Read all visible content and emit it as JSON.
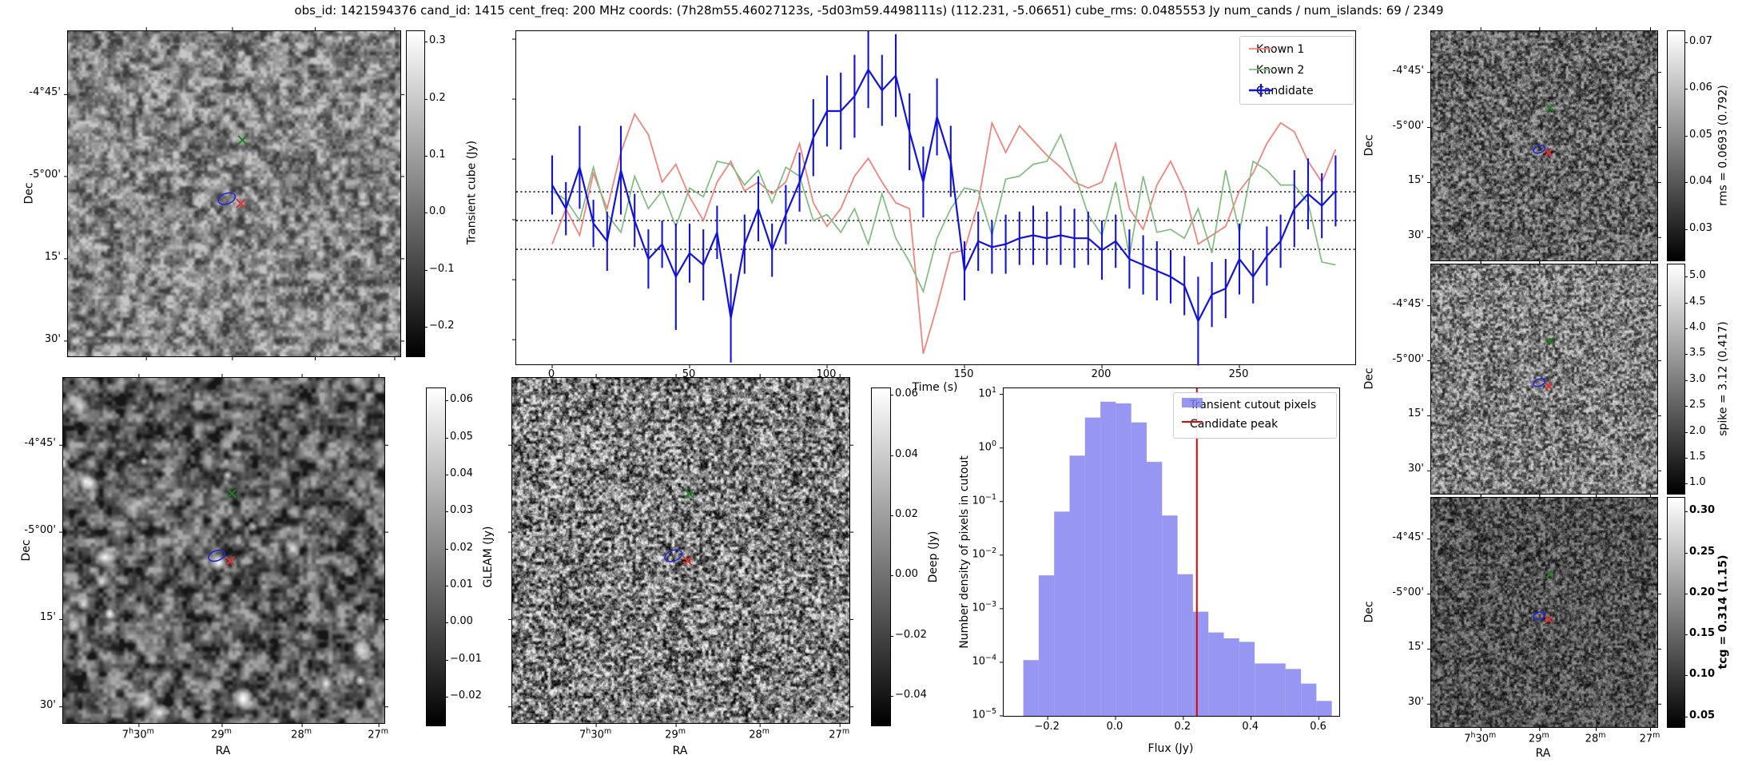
{
  "title": "obs_id: 1421594376 cand_id: 1415 cent_freq: 200 MHz coords: (7h28m55.46027123s, -5d03m59.4498111s) (112.231, -5.06651) cube_rms: 0.0485553 Jy num_cands / num_islands: 69 / 2349",
  "axis": {
    "dec_label": "Dec",
    "ra_label": "RA",
    "dec_ticks": [
      "-4°45'",
      "-5°00'",
      "15'",
      "30'"
    ],
    "ra_ticks": [
      "7h30m",
      "29m",
      "28m",
      "27m"
    ]
  },
  "colorbars": {
    "transient": {
      "label": "Transient cube (Jy)",
      "ticks": [
        "0.3",
        "0.2",
        "0.1",
        "0.0",
        "−0.1",
        "−0.2"
      ],
      "tick_values": [
        0.3,
        0.2,
        0.1,
        0.0,
        -0.1,
        -0.2
      ],
      "vmin": -0.25,
      "vmax": 0.32
    },
    "gleam": {
      "label": "GLEAM (Jy)",
      "ticks": [
        "0.06",
        "0.05",
        "0.04",
        "0.03",
        "0.02",
        "0.01",
        "0.00",
        "−0.01",
        "−0.02"
      ],
      "tick_values": [
        0.06,
        0.05,
        0.04,
        0.03,
        0.02,
        0.01,
        0.0,
        -0.01,
        -0.02
      ],
      "vmin": -0.0275,
      "vmax": 0.0635
    },
    "deep": {
      "label": "Deep (Jy)",
      "ticks": [
        "0.06",
        "0.04",
        "0.02",
        "0.00",
        "−0.02",
        "−0.04"
      ],
      "tick_values": [
        0.06,
        0.04,
        0.02,
        0.0,
        -0.02,
        -0.04
      ],
      "vmin": -0.0495,
      "vmax": 0.0625
    },
    "rms": {
      "label": "rms = 0.0693 (0.792)",
      "ticks": [
        "0.07",
        "0.06",
        "0.05",
        "0.04",
        "0.03"
      ],
      "tick_values": [
        0.07,
        0.06,
        0.05,
        0.04,
        0.03
      ],
      "vmin": 0.0235,
      "vmax": 0.0725
    },
    "spike": {
      "label": "spike = 3.12 (0.417)",
      "ticks": [
        "5.0",
        "4.5",
        "4.0",
        "3.5",
        "3.0",
        "2.5",
        "2.0",
        "1.5",
        "1.0"
      ],
      "tick_values": [
        5.0,
        4.5,
        4.0,
        3.5,
        3.0,
        2.5,
        2.0,
        1.5,
        1.0
      ],
      "vmin": 0.82,
      "vmax": 5.25
    },
    "tcg": {
      "label": "tcg = 0.314 (1.15)",
      "bold": true,
      "ticks": [
        "0.30",
        "0.25",
        "0.20",
        "0.15",
        "0.10",
        "0.05"
      ],
      "tick_values": [
        0.3,
        0.25,
        0.2,
        0.15,
        0.1,
        0.05
      ],
      "vmin": 0.038,
      "vmax": 0.318
    }
  },
  "cutouts": {
    "marker_legend": {
      "known_position_cross_color": "#237d23",
      "candidate_position_cross_color": "#e03131",
      "candidate_island_ellipse_color": "#2525d8"
    }
  },
  "chart_data": [
    {
      "type": "line",
      "title": "",
      "xlabel": "Time (s)",
      "ylabel": "",
      "x_start": 0,
      "x_step": 5,
      "xticks": [
        0,
        50,
        100,
        150,
        200,
        250
      ],
      "ylim": [
        -0.243,
        0.32
      ],
      "threshold_lines": [
        0.0486,
        0.0,
        -0.0486
      ],
      "legend_position": "upper right",
      "series": [
        {
          "name": "Known 1",
          "color": "#f47d76",
          "values": [
            -0.04,
            0.02,
            -0.025,
            0.08,
            0.02,
            0.115,
            0.18,
            0.145,
            0.065,
            0.095,
            0.04,
            0.0,
            0.065,
            0.1,
            0.05,
            0.065,
            0.045,
            0.065,
            0.13,
            0.03,
            -0.01,
            0.02,
            0.075,
            0.105,
            0.065,
            0.03,
            0.02,
            -0.225,
            -0.145,
            -0.055,
            -0.05,
            0.03,
            0.165,
            0.115,
            0.16,
            0.135,
            0.11,
            0.09,
            0.065,
            0.055,
            0.065,
            0.13,
            0.02,
            -0.015,
            0.06,
            0.1,
            0.05,
            -0.04,
            -0.025,
            -0.01,
            0.05,
            0.08,
            0.13,
            0.165,
            0.15,
            0.1,
            0.065,
            0.12
          ]
        },
        {
          "name": "Known 2",
          "color": "#7fbc7f",
          "values": [
            0.05,
            0.035,
            0.0,
            0.09,
            0.01,
            -0.02,
            0.075,
            0.02,
            0.05,
            -0.01,
            0.055,
            0.04,
            0.1,
            0.095,
            0.06,
            0.085,
            0.03,
            0.09,
            0.075,
            0.0,
            0.01,
            -0.02,
            0.02,
            -0.04,
            0.045,
            -0.03,
            -0.07,
            -0.12,
            -0.03,
            0.02,
            0.055,
            0.05,
            -0.025,
            0.07,
            0.075,
            0.095,
            0.1,
            0.145,
            0.08,
            0.01,
            -0.025,
            0.065,
            -0.06,
            0.075,
            -0.02,
            -0.015,
            -0.03,
            0.02,
            -0.055,
            0.085,
            -0.02,
            0.1,
            0.085,
            0.06,
            0.06,
            0.03,
            -0.07,
            -0.075
          ]
        },
        {
          "name": "Candidate",
          "color": "#1212dd",
          "errorbars": true,
          "values": [
            0.06,
            0.02,
            0.09,
            -0.005,
            -0.035,
            0.085,
            0.0,
            -0.065,
            -0.04,
            -0.095,
            -0.055,
            -0.075,
            -0.02,
            -0.165,
            -0.04,
            0.02,
            -0.05,
            0.01,
            0.065,
            0.14,
            0.185,
            0.185,
            0.21,
            0.255,
            0.22,
            0.245,
            0.15,
            0.065,
            0.175,
            0.1,
            -0.085,
            -0.035,
            -0.045,
            -0.04,
            -0.03,
            -0.025,
            -0.03,
            -0.025,
            -0.03,
            -0.03,
            -0.05,
            -0.035,
            -0.065,
            -0.075,
            -0.085,
            -0.095,
            -0.11,
            -0.17,
            -0.125,
            -0.115,
            -0.065,
            -0.095,
            -0.06,
            -0.035,
            0.02,
            0.045,
            0.025,
            0.05
          ],
          "errors": [
            0.05,
            0.045,
            0.07,
            0.04,
            0.05,
            0.075,
            0.045,
            0.05,
            0.04,
            0.09,
            0.05,
            0.06,
            0.045,
            0.075,
            0.05,
            0.055,
            0.045,
            0.05,
            0.05,
            0.065,
            0.06,
            0.065,
            0.07,
            0.065,
            0.06,
            0.07,
            0.065,
            0.06,
            0.065,
            0.06,
            0.05,
            0.05,
            0.045,
            0.05,
            0.045,
            0.05,
            0.045,
            0.05,
            0.05,
            0.045,
            0.05,
            0.045,
            0.05,
            0.05,
            0.05,
            0.045,
            0.05,
            0.075,
            0.055,
            0.05,
            0.06,
            0.045,
            0.05,
            0.045,
            0.065,
            0.06,
            0.055,
            0.06
          ]
        }
      ]
    },
    {
      "type": "bar",
      "xlabel": "Flux (Jy)",
      "ylabel": "Number density of pixels in cutout",
      "yscale": "log",
      "xlim": [
        -0.33,
        0.66
      ],
      "ylim": [
        1e-05,
        13
      ],
      "xticks": [
        "−0.2",
        "0.0",
        "0.2",
        "0.4",
        "0.6"
      ],
      "xtick_values": [
        -0.2,
        0.0,
        0.2,
        0.4,
        0.6
      ],
      "ytick_exponents": [
        1,
        0,
        -1,
        -2,
        -3,
        -4,
        -5
      ],
      "bin_start": -0.272,
      "bin_width": 0.0455,
      "values": [
        0.00011,
        0.0042,
        0.065,
        0.72,
        3.7,
        7.3,
        6.8,
        3.0,
        0.55,
        0.055,
        0.0044,
        0.00088,
        0.00036,
        0.00028,
        0.00024,
        9.5e-05,
        9.5e-05,
        7.5e-05,
        4e-05,
        1.9e-05
      ],
      "bar_color": "#8080f0",
      "candidate_peak_flux": 0.24,
      "legend": [
        {
          "label": "Transient cutout pixels",
          "type": "patch",
          "color": "#8080f0"
        },
        {
          "label": "Candidate peak",
          "type": "line",
          "color": "#e60000"
        }
      ]
    }
  ]
}
